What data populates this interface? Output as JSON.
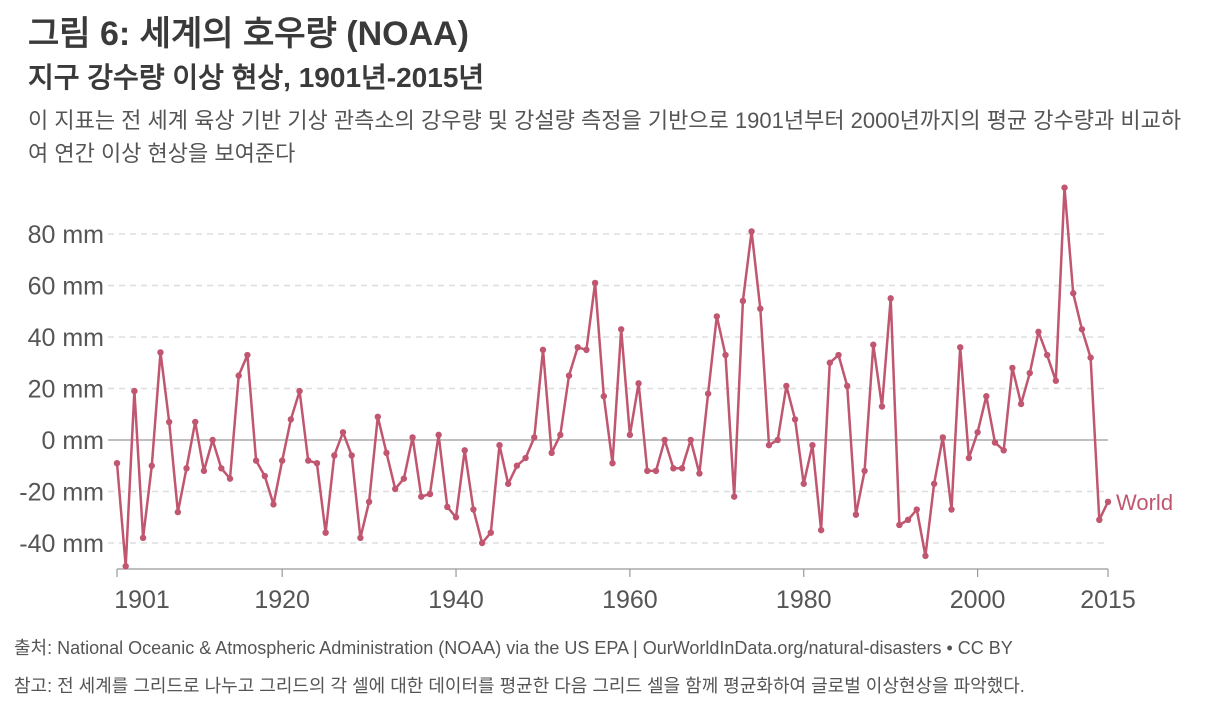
{
  "header": {
    "title": "그림 6: 세계의 호우량 (NOAA)",
    "subtitle": "지구 강수량 이상 현상, 1901년-2015년",
    "description": "이 지표는 전 세계 육상 기반 기상 관측소의 강우량 및 강설량 측정을 기반으로 1901년부터 2000년까지의 평균 강수량과 비교하여 연간 이상 현상을 보여준다"
  },
  "footer": {
    "source": "출처: National Oceanic & Atmospheric Administration (NOAA) via the US EPA | OurWorldInData.org/natural-disasters  •  CC BY",
    "note": "참고: 전 세계를 그리드로 나누고 그리드의 각 셀에 대한 데이터를 평균한 다음 그리드 셀을 함께 평균화하여 글로벌 이상현상을 파악했다."
  },
  "colors": {
    "series": "#c0566f",
    "grid": "#dddddd",
    "zero": "#aaaaaa",
    "text": "#555555"
  },
  "chart_data": {
    "type": "line",
    "title": "그림 6: 세계의 호우량 (NOAA)",
    "xlabel": "",
    "ylabel": "",
    "xlim": [
      1901,
      2015
    ],
    "ylim": [
      -50,
      98
    ],
    "y_ticks": [
      -40,
      -20,
      0,
      20,
      40,
      60,
      80
    ],
    "y_tick_labels": [
      "-40 mm",
      "-20 mm",
      "0 mm",
      "20 mm",
      "40 mm",
      "60 mm",
      "80 mm"
    ],
    "x_ticks": [
      1901,
      1920,
      1940,
      1960,
      1980,
      2000,
      2015
    ],
    "x_tick_labels": [
      "1901",
      "1920",
      "1940",
      "1960",
      "1980",
      "2000",
      "2015"
    ],
    "grid": true,
    "series": [
      {
        "name": "World",
        "x": [
          1901,
          1902,
          1903,
          1904,
          1905,
          1906,
          1907,
          1908,
          1909,
          1910,
          1911,
          1912,
          1913,
          1914,
          1915,
          1916,
          1917,
          1918,
          1919,
          1920,
          1921,
          1922,
          1923,
          1924,
          1925,
          1926,
          1927,
          1928,
          1929,
          1930,
          1931,
          1932,
          1933,
          1934,
          1935,
          1936,
          1937,
          1938,
          1939,
          1940,
          1941,
          1942,
          1943,
          1944,
          1945,
          1946,
          1947,
          1948,
          1949,
          1950,
          1951,
          1952,
          1953,
          1954,
          1955,
          1956,
          1957,
          1958,
          1959,
          1960,
          1961,
          1962,
          1963,
          1964,
          1965,
          1966,
          1967,
          1968,
          1969,
          1970,
          1971,
          1972,
          1973,
          1974,
          1975,
          1976,
          1977,
          1978,
          1979,
          1980,
          1981,
          1982,
          1983,
          1984,
          1985,
          1986,
          1987,
          1988,
          1989,
          1990,
          1991,
          1992,
          1993,
          1994,
          1995,
          1996,
          1997,
          1998,
          1999,
          2000,
          2001,
          2002,
          2003,
          2004,
          2005,
          2006,
          2007,
          2008,
          2009,
          2010,
          2011,
          2012,
          2013,
          2014,
          2015
        ],
        "values": [
          -9,
          -49,
          19,
          -38,
          -10,
          34,
          7,
          -28,
          -11,
          7,
          -12,
          0,
          -11,
          -15,
          25,
          33,
          -8,
          -14,
          -25,
          -8,
          8,
          19,
          -8,
          -9,
          -36,
          -6,
          3,
          -6,
          -38,
          -24,
          9,
          -5,
          -19,
          -15,
          1,
          -22,
          -21,
          2,
          -26,
          -30,
          -4,
          -27,
          -40,
          -36,
          -2,
          -17,
          -10,
          -7,
          1,
          35,
          -5,
          2,
          25,
          36,
          35,
          61,
          17,
          -9,
          43,
          2,
          22,
          -12,
          -12,
          0,
          -11,
          -11,
          0,
          -13,
          18,
          48,
          33,
          -22,
          54,
          81,
          51,
          -2,
          0,
          21,
          8,
          -17,
          -2,
          -35,
          30,
          33,
          21,
          -29,
          -12,
          37,
          13,
          55,
          -33,
          -31,
          -27,
          -45,
          -17,
          1,
          -27,
          36,
          -7,
          3,
          17,
          -1,
          -4,
          28,
          14,
          26,
          42,
          33,
          23,
          98,
          57,
          43,
          32,
          -31,
          -24
        ]
      }
    ]
  }
}
